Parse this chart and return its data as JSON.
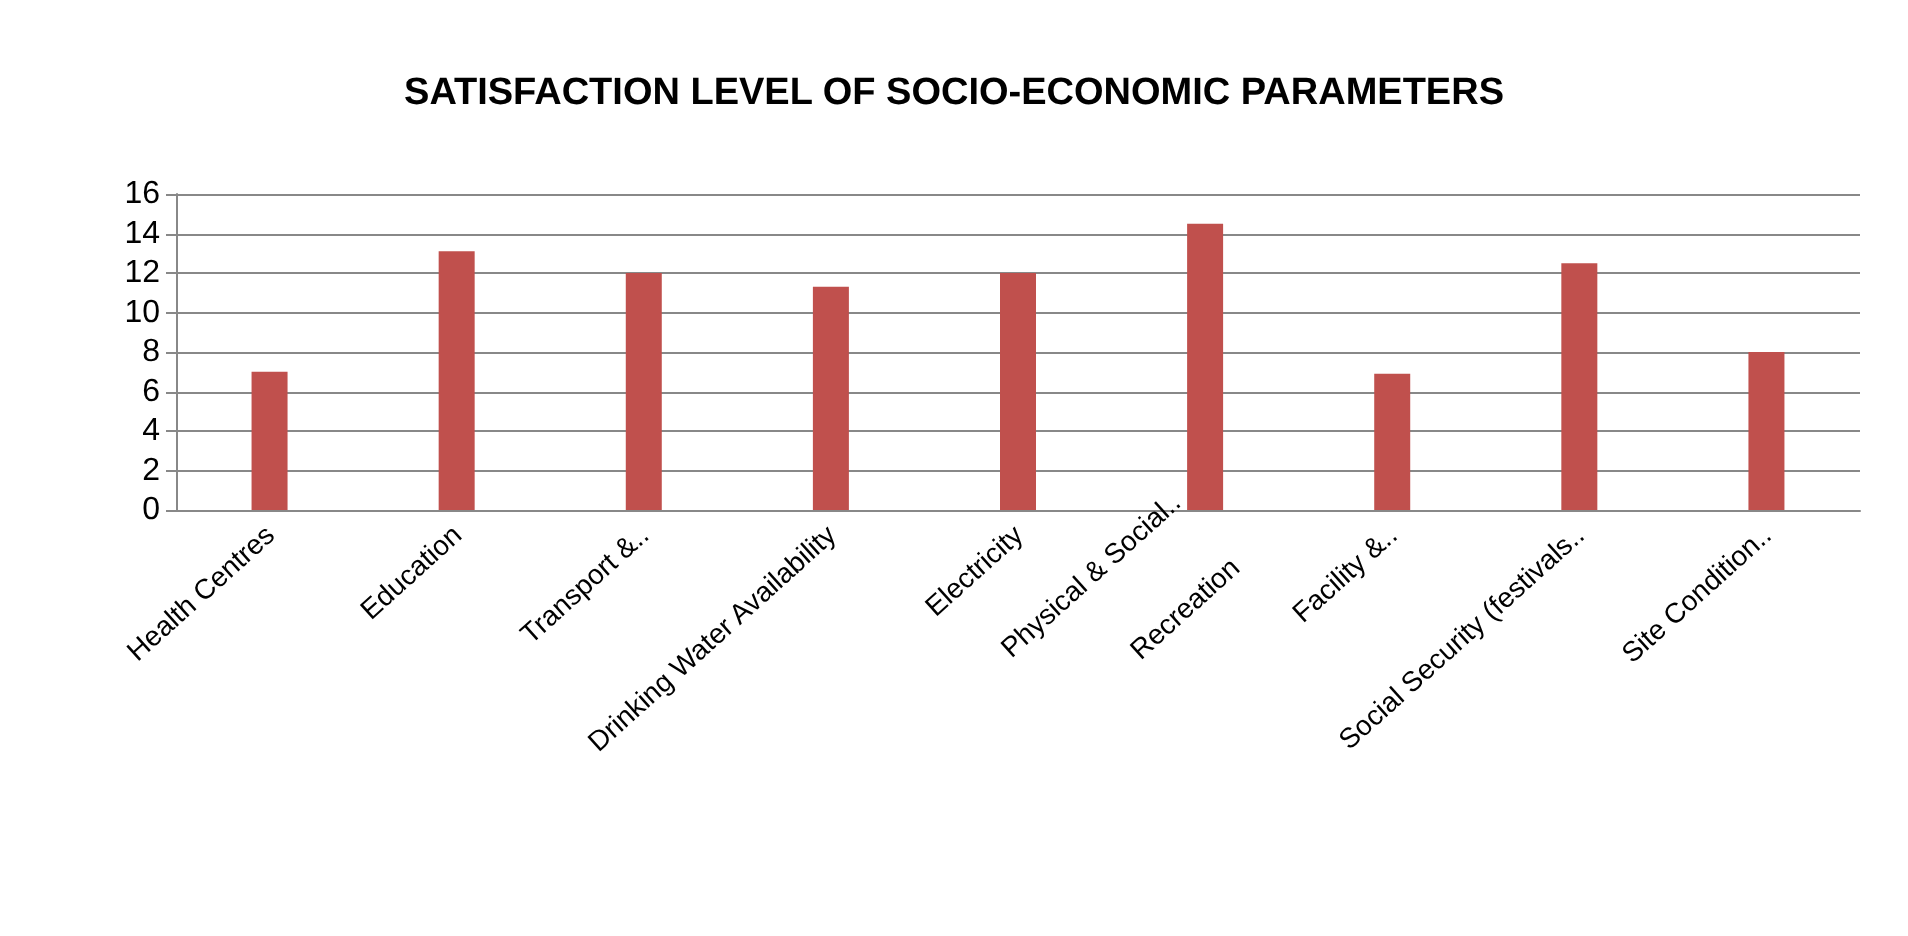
{
  "chart_data": {
    "type": "bar",
    "title": "SATISFACTION LEVEL OF SOCIO-ECONOMIC PARAMETERS",
    "categories": [
      "Health Centres",
      "Education",
      "Transport &..",
      "Drinking Water Availability",
      "Electricity",
      "Physical & Social..\nRecreation",
      "Facility &..",
      "Social Security (festivals..",
      "Site Condition.."
    ],
    "values": [
      7,
      13.1,
      12,
      11.3,
      12,
      14.5,
      6.9,
      12.5,
      8
    ],
    "color": "#c0504d",
    "ylim": [
      0,
      16
    ],
    "yticks": [
      0,
      2,
      4,
      6,
      8,
      10,
      12,
      14,
      16
    ],
    "grid": "y"
  }
}
